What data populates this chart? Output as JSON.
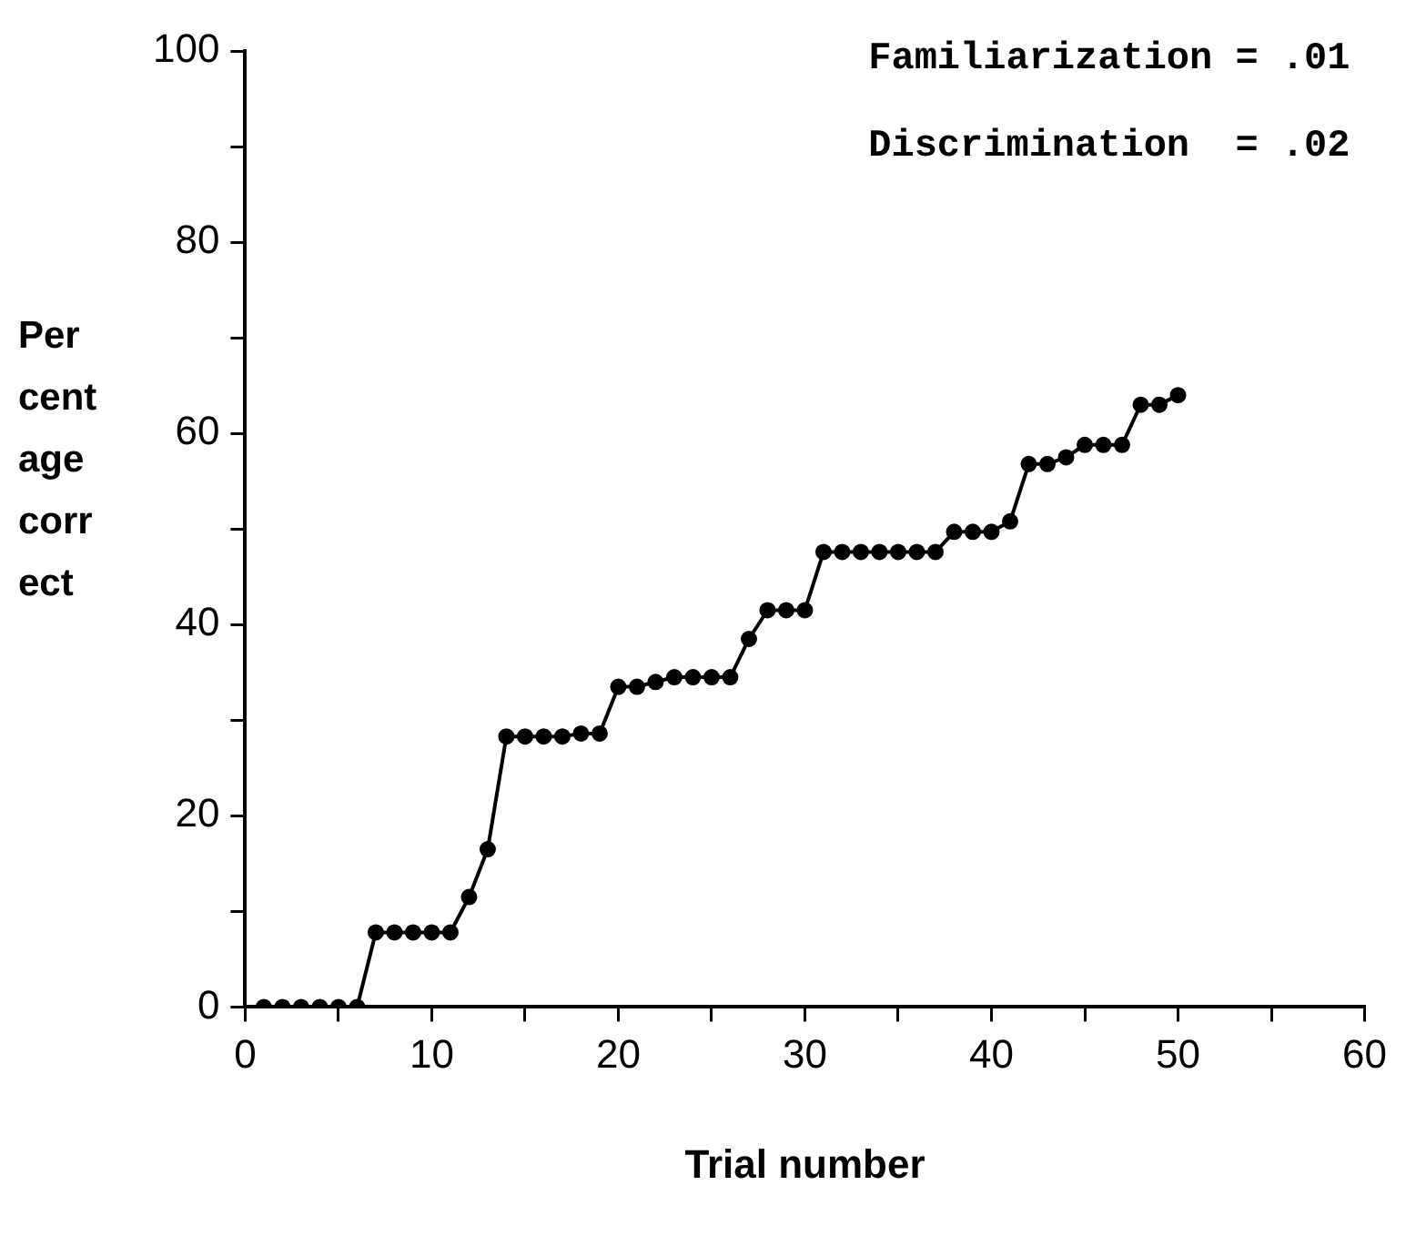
{
  "chart_data": {
    "type": "line",
    "xlabel": "Trial number",
    "ylabel": "Percentage correct",
    "annotations": [
      "Familiarization = .01",
      "Discrimination  = .02"
    ],
    "x": [
      1,
      2,
      3,
      4,
      5,
      6,
      7,
      8,
      9,
      10,
      11,
      12,
      13,
      14,
      15,
      16,
      17,
      18,
      19,
      20,
      21,
      22,
      23,
      24,
      25,
      26,
      27,
      28,
      29,
      30,
      31,
      32,
      33,
      34,
      35,
      36,
      37,
      38,
      39,
      40,
      41,
      42,
      43,
      44,
      45,
      46,
      47,
      48,
      49,
      50
    ],
    "series": [
      {
        "color": "#000000",
        "values": [
          0,
          0,
          0,
          0,
          0,
          0,
          7.8,
          7.8,
          7.8,
          7.8,
          7.8,
          11.5,
          16.5,
          28.3,
          28.3,
          28.3,
          28.3,
          28.6,
          28.6,
          33.5,
          33.5,
          34,
          34.5,
          34.5,
          34.5,
          34.5,
          38.5,
          41.5,
          41.5,
          41.5,
          47.6,
          47.6,
          47.6,
          47.6,
          47.6,
          47.6,
          47.6,
          49.7,
          49.7,
          49.7,
          50.8,
          56.8,
          56.8,
          57.5,
          58.8,
          58.8,
          58.8,
          63,
          63,
          64
        ]
      }
    ],
    "xlim": [
      0,
      60
    ],
    "xticks": [
      0,
      {
        "value": 5,
        "label": null
      },
      10,
      {
        "value": 15,
        "label": null
      },
      20,
      {
        "value": 25,
        "label": null
      },
      30,
      {
        "value": 35,
        "label": null
      },
      40,
      {
        "value": 45,
        "label": null
      },
      50,
      {
        "value": 55,
        "label": null
      },
      60
    ],
    "ylim": [
      0,
      100
    ],
    "yticks": [
      0,
      {
        "value": 10,
        "label": null
      },
      20,
      {
        "value": 30,
        "label": null
      },
      40,
      {
        "value": 50,
        "label": null
      },
      60,
      {
        "value": 70,
        "label": null
      },
      80,
      {
        "value": 90,
        "label": null
      },
      100
    ],
    "grid": false,
    "legend": false,
    "marker": "circle",
    "line_style": "solid"
  }
}
